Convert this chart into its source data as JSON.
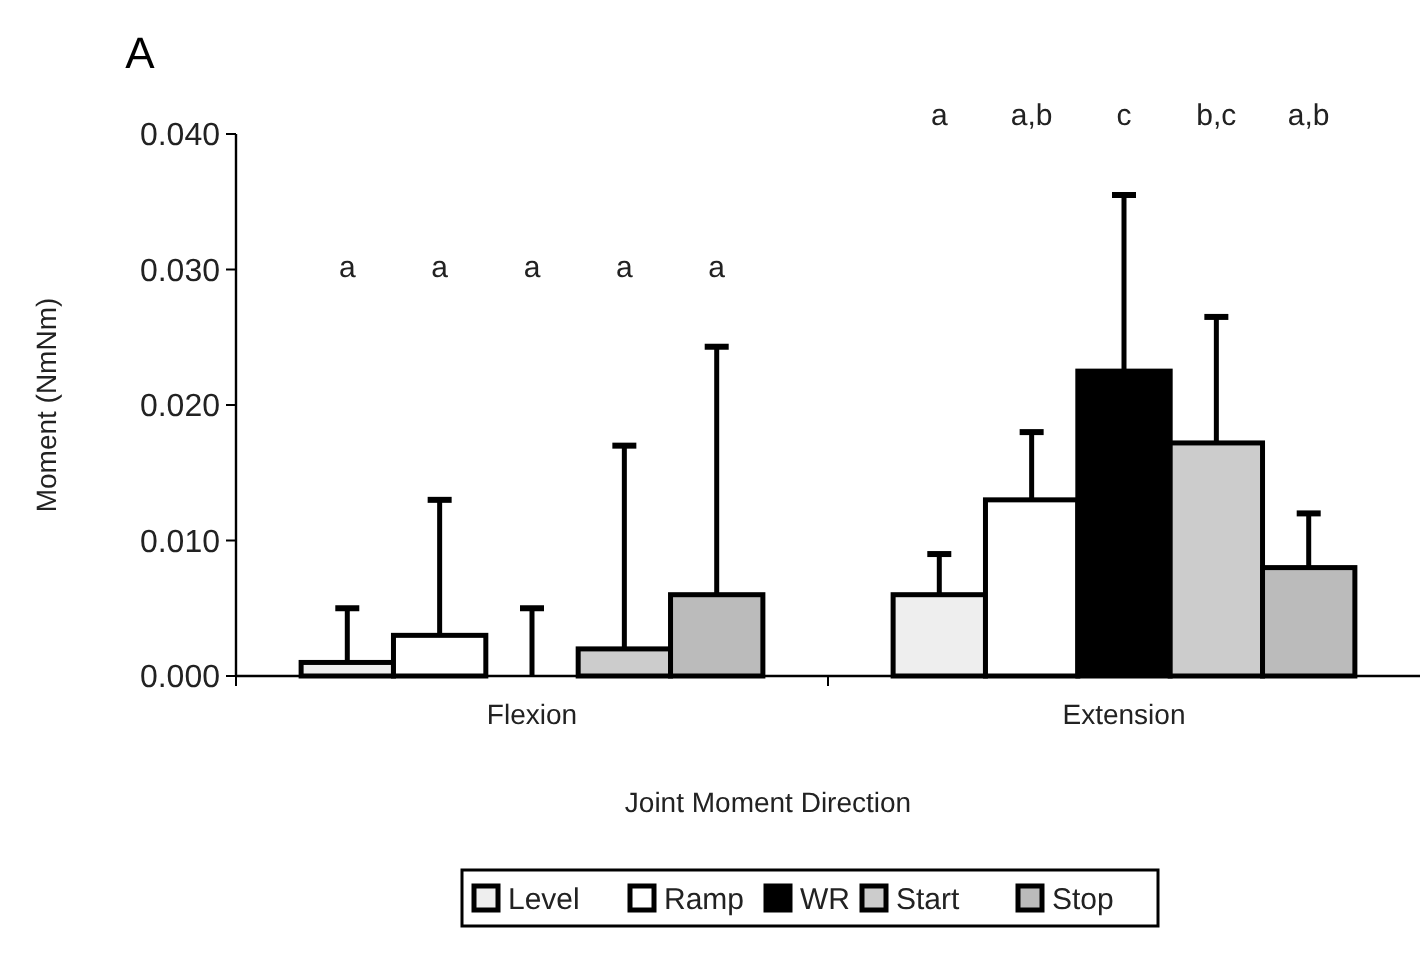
{
  "chart_data": {
    "type": "bar",
    "title": "A",
    "xlabel": "Joint Moment Direction",
    "ylabel": "Moment (NmNm)",
    "categories": [
      "Flexion",
      "Extension"
    ],
    "series": [
      {
        "name": "Level",
        "color": "#eeeeee",
        "values": [
          0.001,
          0.006
        ],
        "errors": [
          [
            0.001,
            0.005
          ],
          [
            0.006,
            0.009
          ]
        ]
      },
      {
        "name": "Ramp",
        "color": "#ffffff",
        "values": [
          0.003,
          0.013
        ],
        "errors": [
          [
            0.003,
            0.013
          ],
          [
            0.013,
            0.018
          ]
        ]
      },
      {
        "name": "WR",
        "color": "#000000",
        "values": [
          0,
          0.0225
        ],
        "errors": [
          [
            0,
            0.005
          ],
          [
            0.0225,
            0.0355
          ]
        ]
      },
      {
        "name": "Start",
        "color": "#cccccc",
        "values": [
          0.002,
          0.0172
        ],
        "errors": [
          [
            0.002,
            0.017
          ],
          [
            0.0172,
            0.0265
          ]
        ]
      },
      {
        "name": "Stop",
        "color": "#bbbbbb",
        "values": [
          0.006,
          0.008
        ],
        "errors": [
          [
            0.006,
            0.0243
          ],
          [
            0.008,
            0.012
          ]
        ]
      }
    ],
    "ylim": [
      0,
      0.04
    ],
    "yticks": [
      {
        "value": 0,
        "label": "0.000"
      },
      {
        "value": 0.01,
        "label": "0.010"
      },
      {
        "value": 0.02,
        "label": "0.020"
      },
      {
        "value": 0.03,
        "label": "0.030"
      },
      {
        "value": 0.04,
        "label": "0.040"
      }
    ],
    "grid": false,
    "legend": "bottom",
    "annotations": [
      "a",
      "a",
      "a",
      "a",
      "a",
      "a",
      "a,b",
      "c",
      "b,c",
      "a,b"
    ]
  }
}
